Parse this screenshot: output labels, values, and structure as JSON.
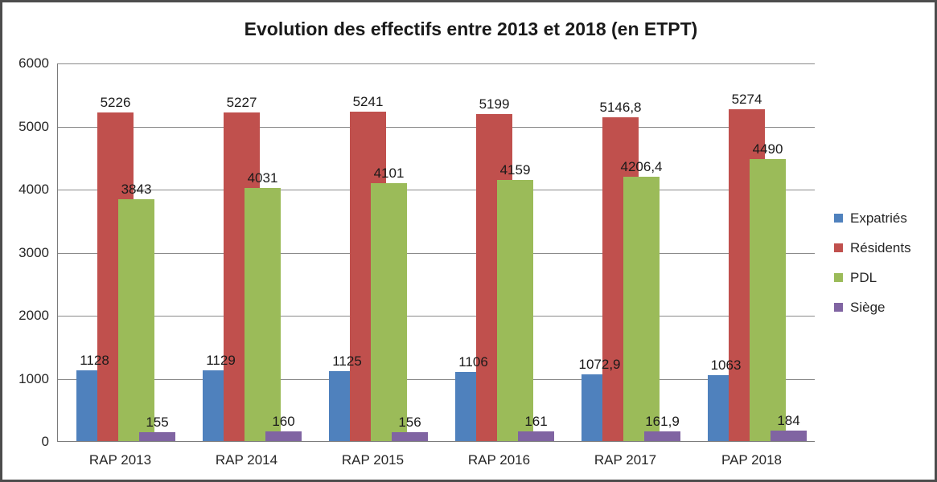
{
  "chart_data": {
    "type": "bar",
    "title": "Evolution des effectifs entre 2013 et 2018 (en ETPT)",
    "categories": [
      "RAP 2013",
      "RAP 2014",
      "RAP 2015",
      "RAP 2016",
      "RAP 2017",
      "PAP 2018"
    ],
    "series": [
      {
        "name": "Expatriés",
        "color": "#4F81BD",
        "values": [
          1128,
          1129,
          1125,
          1106,
          1072.9,
          1063
        ],
        "labels": [
          "1128",
          "1129",
          "1125",
          "1106",
          "1072,9",
          "1063"
        ]
      },
      {
        "name": "Résidents",
        "color": "#C0504D",
        "values": [
          5226,
          5227,
          5241,
          5199,
          5146.8,
          5274
        ],
        "labels": [
          "5226",
          "5227",
          "5241",
          "5199",
          "5146,8",
          "5274"
        ]
      },
      {
        "name": "PDL",
        "color": "#9BBB59",
        "values": [
          3843,
          4031,
          4101,
          4159,
          4206.4,
          4490
        ],
        "labels": [
          "3843",
          "4031",
          "4101",
          "4159",
          "4206,4",
          "4490"
        ]
      },
      {
        "name": "Siège",
        "color": "#8064A2",
        "values": [
          155,
          160,
          156,
          161,
          161.9,
          184
        ],
        "labels": [
          "155",
          "160",
          "156",
          "161",
          "161,9",
          "184"
        ]
      }
    ],
    "ylim": [
      0,
      6000
    ],
    "yticks": [
      0,
      1000,
      2000,
      3000,
      4000,
      5000,
      6000
    ],
    "grid": "horizontal",
    "legend_position": "right",
    "bars_overlap": true,
    "data_labels": "outside-end"
  },
  "style": {
    "gridline_color": "#8a8a8a",
    "axis_color": "#7a7a7a",
    "frame_border_color": "#4d4d4d",
    "text_color": "#262626",
    "background": "#ffffff"
  }
}
